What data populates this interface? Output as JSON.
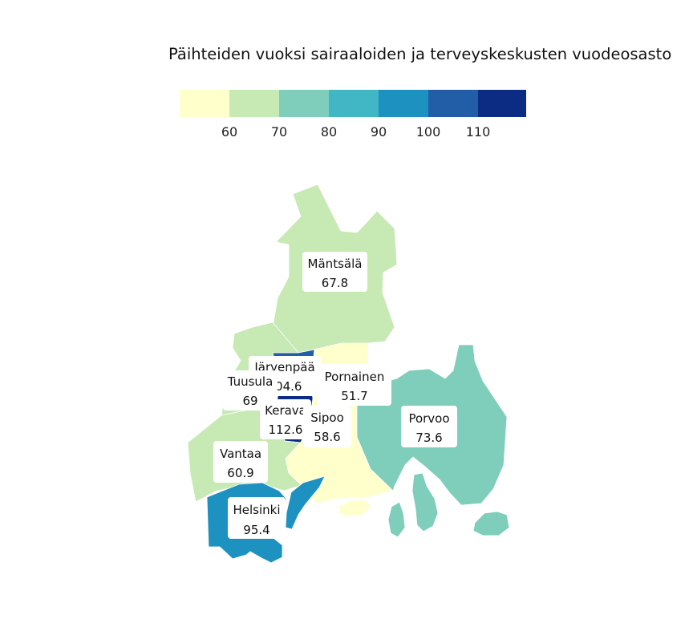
{
  "title": "Päihteiden vuoksi sairaaloiden ja terveyskeskusten vuodeosasto",
  "legend": {
    "colors": [
      "#ffffcc",
      "#c7e9b4",
      "#7fcdbb",
      "#41b6c4",
      "#1d91c0",
      "#225ea8",
      "#0c2c84"
    ],
    "ticks": [
      "60",
      "70",
      "80",
      "90",
      "100",
      "110"
    ]
  },
  "municipalities": [
    {
      "id": "mantsala",
      "name": "Mäntsälä",
      "value": "67.8",
      "color": "#c7e9b4"
    },
    {
      "id": "jarvenpaa",
      "name": "Järvenpää",
      "value": "104.6",
      "color": "#225ea8"
    },
    {
      "id": "tuusula",
      "name": "Tuusula",
      "value": "69",
      "color": "#c7e9b4"
    },
    {
      "id": "pornainen",
      "name": "Pornainen",
      "value": "51.7",
      "color": "#ffffcc"
    },
    {
      "id": "kerava",
      "name": "Kerava",
      "value": "112.6",
      "color": "#0c2c84"
    },
    {
      "id": "sipoo",
      "name": "Sipoo",
      "value": "58.6",
      "color": "#ffffcc"
    },
    {
      "id": "porvoo",
      "name": "Porvoo",
      "value": "73.6",
      "color": "#7fcdbb"
    },
    {
      "id": "vantaa",
      "name": "Vantaa",
      "value": "60.9",
      "color": "#c7e9b4"
    },
    {
      "id": "helsinki",
      "name": "Helsinki",
      "value": "95.4",
      "color": "#1d91c0"
    }
  ]
}
